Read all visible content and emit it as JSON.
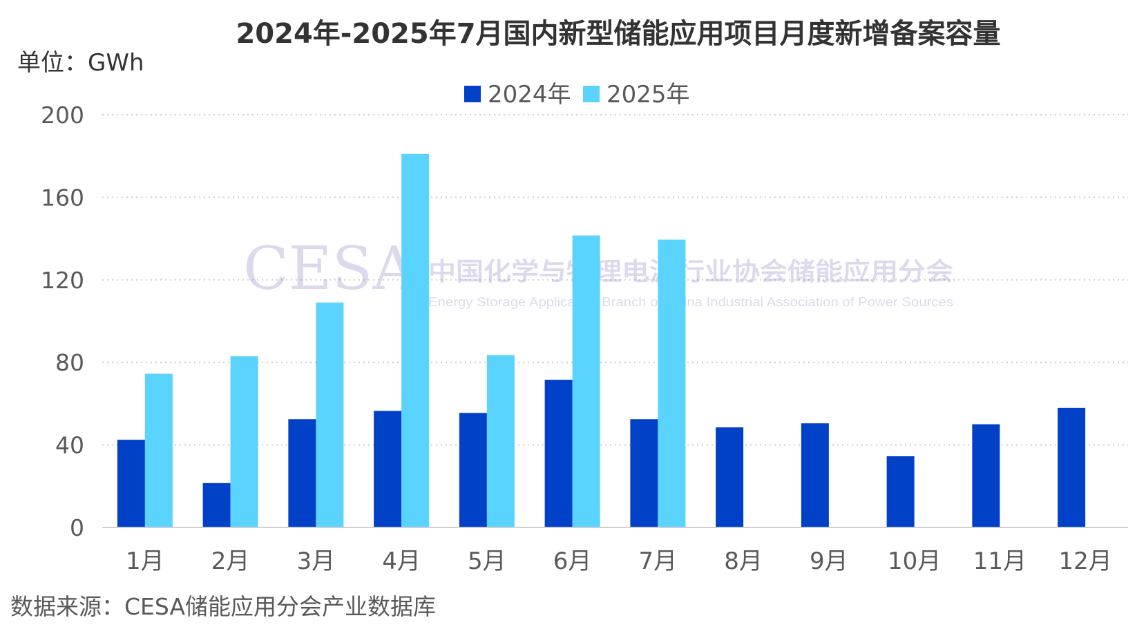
{
  "chart_data": {
    "type": "bar",
    "title": "2024年-2025年7月国内新型储能应用项目月度新增备案容量",
    "unit_label": "单位：GWh",
    "categories": [
      "1月",
      "2月",
      "3月",
      "4月",
      "5月",
      "6月",
      "7月",
      "8月",
      "9月",
      "10月",
      "11月",
      "12月"
    ],
    "series": [
      {
        "name": "2024年",
        "color": "#0041C8",
        "values": [
          42.5,
          21.5,
          52.5,
          56.5,
          55.5,
          71.5,
          52.5,
          48.5,
          50.5,
          34.5,
          50.0,
          58.0
        ]
      },
      {
        "name": "2025年",
        "color": "#5BD3FF",
        "values": [
          74.5,
          83.0,
          109.0,
          181.0,
          83.5,
          141.5,
          139.5,
          null,
          null,
          null,
          null,
          null
        ]
      }
    ],
    "ylim": [
      0,
      200
    ],
    "yticks": [
      0,
      40,
      80,
      120,
      160,
      200
    ],
    "grid": true,
    "legend_position": "top-center",
    "source": "数据来源：CESA储能应用分会产业数据库"
  },
  "watermark": {
    "logo": "CESA",
    "name_cn": "中国化学与物理电源行业协会储能应用分会",
    "name_en": "Energy Storage Application Branch of China Industrial Association of Power Sources"
  }
}
